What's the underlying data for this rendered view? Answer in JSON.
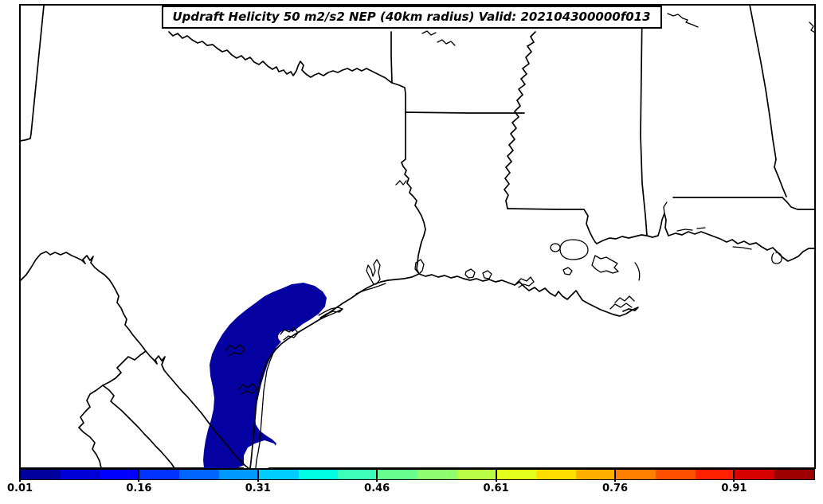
{
  "title": {
    "text": "Updraft Helicity 50 m2/s2 NEP (40km radius) Valid: 202104300000f013"
  },
  "colorbar": {
    "min": 0.01,
    "max": 1.01,
    "levels": [
      0.01,
      0.06,
      0.11,
      0.16,
      0.21,
      0.26,
      0.31,
      0.36,
      0.41,
      0.46,
      0.51,
      0.56,
      0.61,
      0.66,
      0.71,
      0.76,
      0.81,
      0.86,
      0.91,
      0.96,
      1.01
    ],
    "segment_colors": [
      "#00009C",
      "#0000D6",
      "#0000FF",
      "#0033FF",
      "#0066FF",
      "#0099FF",
      "#00CCFF",
      "#00FFE2",
      "#3EFFB9",
      "#67FF90",
      "#90FF6F",
      "#B9FF46",
      "#E2FF1D",
      "#FFDE00",
      "#FFAF00",
      "#FF8000",
      "#FF5000",
      "#FF2100",
      "#D60000",
      "#9C0000"
    ],
    "ticks": [
      {
        "label": "0.01",
        "value": 0.01
      },
      {
        "label": "0.16",
        "value": 0.16
      },
      {
        "label": "0.31",
        "value": 0.31
      },
      {
        "label": "0.46",
        "value": 0.46
      },
      {
        "label": "0.61",
        "value": 0.61
      },
      {
        "label": "0.76",
        "value": 0.76
      },
      {
        "label": "0.91",
        "value": 0.91
      }
    ],
    "outline_color": "#000000"
  },
  "map": {
    "background_color": "#ffffff",
    "line_color": "#000000",
    "nep_fill_color": "#0500A0"
  }
}
